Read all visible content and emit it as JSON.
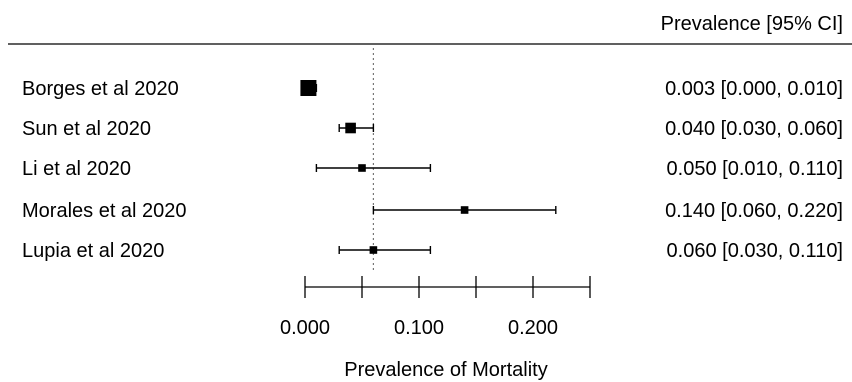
{
  "chart_data": {
    "type": "forest",
    "column_header": "Prevalence [95% CI]",
    "xlabel": "Prevalence of Mortality",
    "xlim": [
      0.0,
      0.25
    ],
    "xticks": [
      0.0,
      0.05,
      0.1,
      0.15,
      0.2,
      0.25
    ],
    "tick_labels": [
      "0.000",
      "0.100",
      "0.200"
    ],
    "tick_label_values": [
      0.0,
      0.1,
      0.2
    ],
    "reference_line": 0.06,
    "studies": [
      {
        "label": "Borges et al 2020",
        "estimate": 0.003,
        "ci_low": 0.0,
        "ci_high": 0.01,
        "ci_text": "0.003 [0.000, 0.010]",
        "weight": 1.0
      },
      {
        "label": "Sun et al 2020",
        "estimate": 0.04,
        "ci_low": 0.03,
        "ci_high": 0.06,
        "ci_text": "0.040 [0.030, 0.060]",
        "weight": 0.55
      },
      {
        "label": "Li et al 2020",
        "estimate": 0.05,
        "ci_low": 0.01,
        "ci_high": 0.11,
        "ci_text": "0.050 [0.010, 0.110]",
        "weight": 0.3
      },
      {
        "label": "Morales et al 2020",
        "estimate": 0.14,
        "ci_low": 0.06,
        "ci_high": 0.22,
        "ci_text": "0.140 [0.060, 0.220]",
        "weight": 0.3
      },
      {
        "label": "Lupia et al 2020",
        "estimate": 0.06,
        "ci_low": 0.03,
        "ci_high": 0.11,
        "ci_text": "0.060 [0.030, 0.110]",
        "weight": 0.3
      }
    ]
  }
}
